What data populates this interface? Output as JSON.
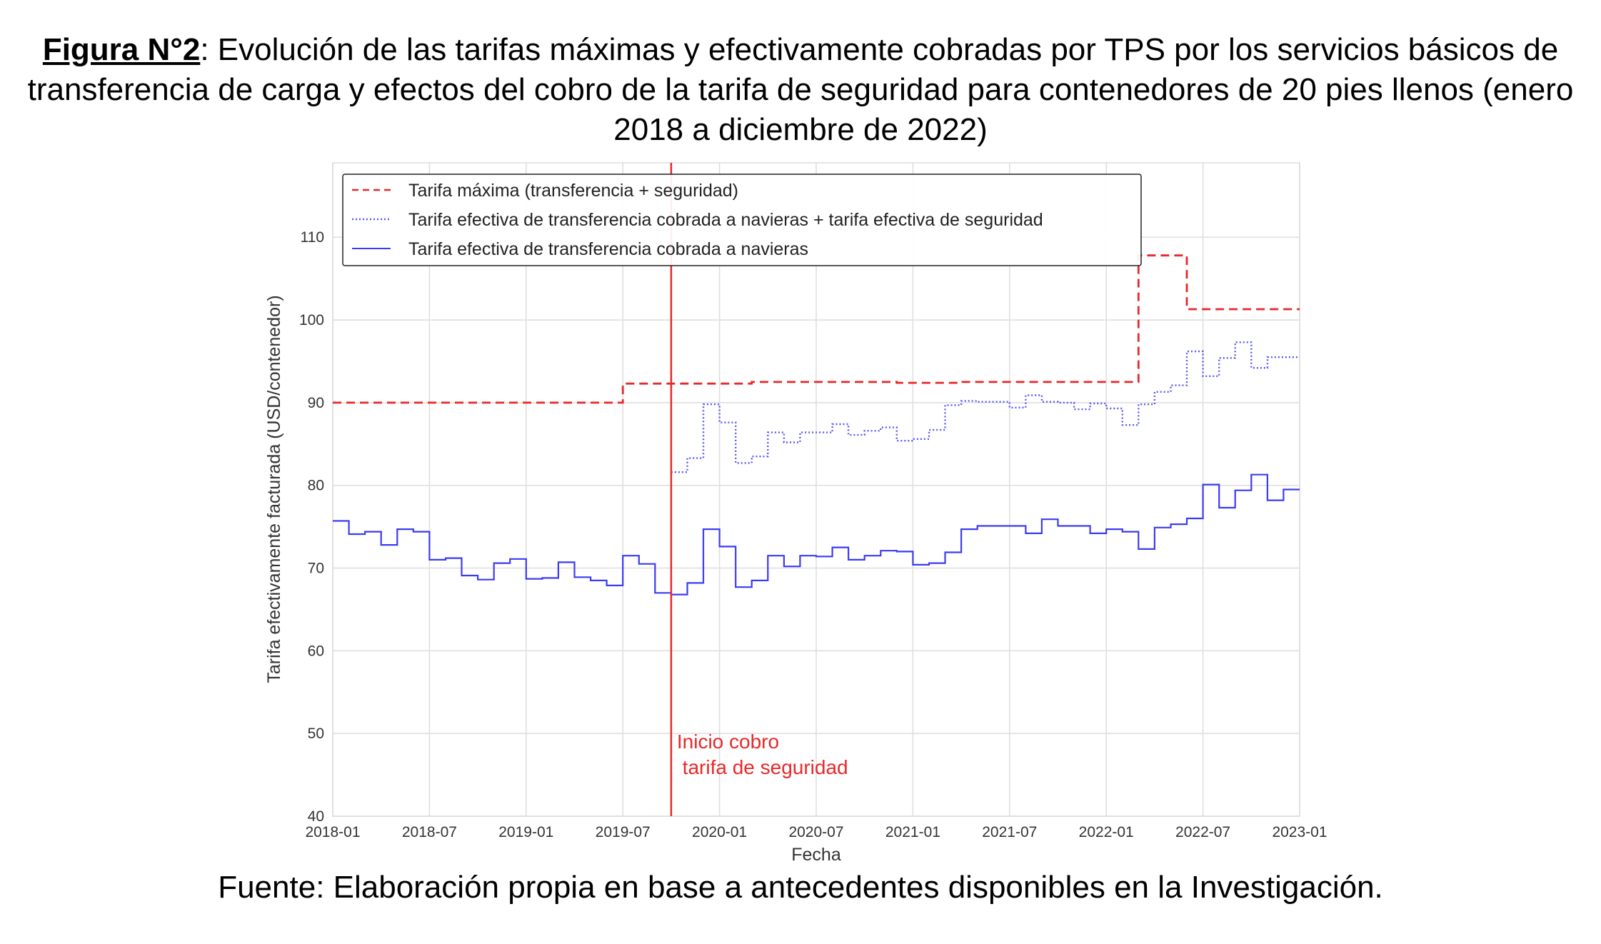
{
  "figure": {
    "label": "Figura N°2",
    "title_rest": ": Evolución de las tarifas máximas y efectivamente cobradas por TPS por los servicios básicos de transferencia de carga y efectos del cobro de la tarifa de seguridad para contenedores de 20 pies llenos (enero 2018 a diciembre de 2022)",
    "source": "Fuente: Elaboración propia en base a antecedentes disponibles en la Investigación."
  },
  "chart_data": {
    "type": "line",
    "step": "post",
    "xlabel": "Fecha",
    "ylabel": "Tarifa efectivamente facturada (USD/contenedor)",
    "xlim": [
      "2018-01",
      "2023-01"
    ],
    "ylim": [
      40,
      119
    ],
    "x_ticks": [
      "2018-01",
      "2018-07",
      "2019-01",
      "2019-07",
      "2020-01",
      "2020-07",
      "2021-01",
      "2021-07",
      "2022-01",
      "2022-07",
      "2023-01"
    ],
    "y_ticks": [
      40,
      50,
      60,
      70,
      80,
      90,
      100,
      110
    ],
    "grid": true,
    "legend_position": "top-left",
    "x": [
      "2018-01",
      "2018-02",
      "2018-03",
      "2018-04",
      "2018-05",
      "2018-06",
      "2018-07",
      "2018-08",
      "2018-09",
      "2018-10",
      "2018-11",
      "2018-12",
      "2019-01",
      "2019-02",
      "2019-03",
      "2019-04",
      "2019-05",
      "2019-06",
      "2019-07",
      "2019-08",
      "2019-09",
      "2019-10",
      "2019-11",
      "2019-12",
      "2020-01",
      "2020-02",
      "2020-03",
      "2020-04",
      "2020-05",
      "2020-06",
      "2020-07",
      "2020-08",
      "2020-09",
      "2020-10",
      "2020-11",
      "2020-12",
      "2021-01",
      "2021-02",
      "2021-03",
      "2021-04",
      "2021-05",
      "2021-06",
      "2021-07",
      "2021-08",
      "2021-09",
      "2021-10",
      "2021-11",
      "2021-12",
      "2022-01",
      "2022-02",
      "2022-03",
      "2022-04",
      "2022-05",
      "2022-06",
      "2022-07",
      "2022-08",
      "2022-09",
      "2022-10",
      "2022-11",
      "2022-12"
    ],
    "series": [
      {
        "name": "Tarifa máxima (transferencia + seguridad)",
        "color": "#e8282a",
        "style": "dashed",
        "values": [
          90,
          90,
          90,
          90,
          90,
          90,
          90,
          90,
          90,
          90,
          90,
          90,
          90,
          90,
          90,
          90,
          90,
          90,
          92.3,
          92.3,
          92.3,
          92.3,
          92.3,
          92.3,
          92.3,
          92.3,
          92.5,
          92.5,
          92.5,
          92.5,
          92.5,
          92.5,
          92.5,
          92.5,
          92.5,
          92.4,
          92.4,
          92.4,
          92.4,
          92.5,
          92.5,
          92.5,
          92.5,
          92.5,
          92.5,
          92.5,
          92.5,
          92.5,
          92.5,
          92.5,
          107.8,
          107.8,
          107.8,
          101.3,
          101.3,
          101.3,
          101.3,
          101.3,
          101.3,
          101.3
        ]
      },
      {
        "name": "Tarifa efectiva de transferencia cobrada a navieras + tarifa efectiva de seguridad",
        "color": "#5a5af0",
        "style": "dotted",
        "values": [
          null,
          null,
          null,
          null,
          null,
          null,
          null,
          null,
          null,
          null,
          null,
          null,
          null,
          null,
          null,
          null,
          null,
          null,
          null,
          null,
          null,
          81.6,
          83.3,
          89.8,
          87.6,
          82.7,
          83.5,
          86.4,
          85.2,
          86.4,
          86.4,
          87.4,
          86.1,
          86.6,
          87.0,
          85.4,
          85.6,
          86.7,
          89.7,
          90.2,
          90.1,
          90.1,
          89.4,
          90.9,
          90.1,
          90.0,
          89.2,
          89.9,
          89.3,
          87.3,
          89.8,
          91.3,
          92.1,
          96.2,
          93.2,
          95.4,
          97.3,
          94.2,
          95.5,
          95.5
        ]
      },
      {
        "name": "Tarifa efectiva de transferencia cobrada a navieras",
        "color": "#3b3bf2",
        "style": "solid",
        "values": [
          75.7,
          74.1,
          74.4,
          72.8,
          74.7,
          74.4,
          71.0,
          71.2,
          69.1,
          68.6,
          70.6,
          71.1,
          68.7,
          68.8,
          70.7,
          68.9,
          68.5,
          67.9,
          71.5,
          70.5,
          67.0,
          66.8,
          68.2,
          74.7,
          72.6,
          67.7,
          68.5,
          71.5,
          70.2,
          71.5,
          71.4,
          72.5,
          71.0,
          71.5,
          72.1,
          72.0,
          70.4,
          70.6,
          71.9,
          74.7,
          75.1,
          75.1,
          75.1,
          74.2,
          75.9,
          75.1,
          75.1,
          74.2,
          74.7,
          74.4,
          72.3,
          74.9,
          75.3,
          76.0,
          80.1,
          77.3,
          79.4,
          81.3,
          78.2,
          79.5
        ]
      }
    ],
    "annotation": {
      "x": "2019-10",
      "text_line1": "Inicio cobro",
      "text_line2": " tarifa de seguridad",
      "color": "#e8282a"
    }
  }
}
